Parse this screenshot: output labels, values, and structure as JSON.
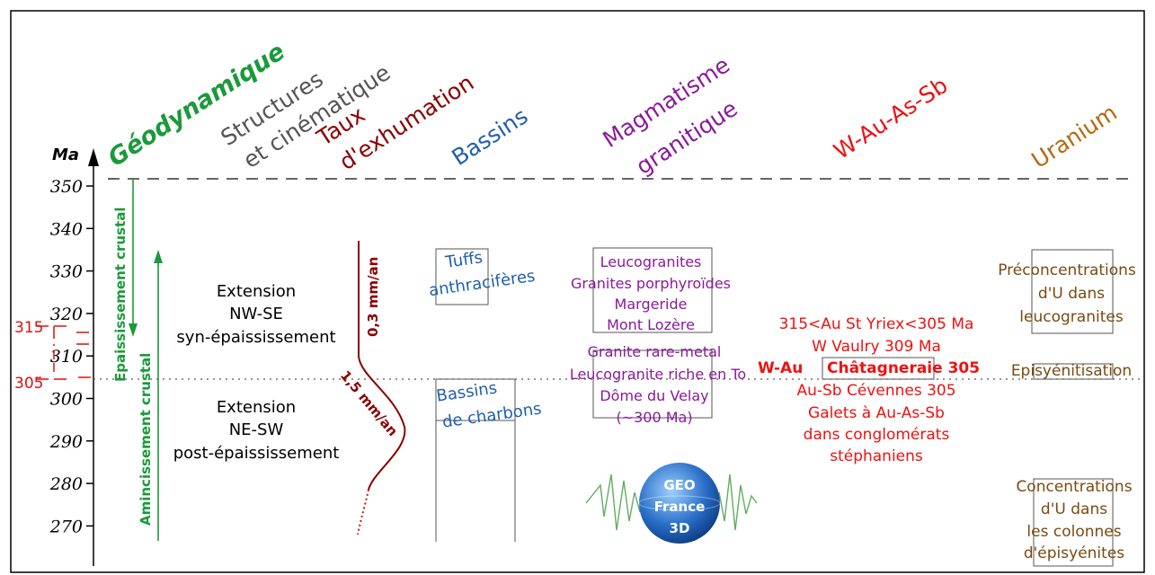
{
  "axis": {
    "unit": "Ma",
    "ticks": [
      350,
      340,
      330,
      320,
      310,
      300,
      290,
      280,
      270
    ],
    "markers": [
      "315",
      "305"
    ]
  },
  "headers": {
    "geodynamique": "Géodynamique",
    "structures_1": "Structures",
    "structures_2": "et cinématique",
    "taux_1": "Taux",
    "taux_2": "d'exhumation",
    "bassins": "Bassins",
    "magmatisme_1": "Magmatisme",
    "magmatisme_2": "granitique",
    "wauassb": "W-Au-As-Sb",
    "uranium": "Uranium"
  },
  "geodynamique": {
    "epaississement": "Epaississement crustal",
    "amincissement": "Amincissement crustal"
  },
  "structures": {
    "phase1": [
      "Extension",
      "NW-SE",
      "syn-épaississement"
    ],
    "phase2": [
      "Extension",
      "NE-SW",
      "post-épaississement"
    ]
  },
  "exhumation": {
    "rate1": "0,3 mm/an",
    "rate2": "1,5 mm/an"
  },
  "bassins": {
    "tuffs": [
      "Tuffs",
      "anthracifères"
    ],
    "charbons": [
      "Bassins",
      "de charbons"
    ]
  },
  "magmatisme": {
    "group1": [
      "Leucogranites",
      "Granites porphyroïdes",
      "Margeride",
      "Mont Lozère"
    ],
    "group2": [
      "Granite rare-metal",
      "Leucogranite riche en To",
      "Dôme du Velay",
      "(~300 Ma)"
    ]
  },
  "wauassb": {
    "lines": [
      "315<Au St Yriex<305 Ma",
      "W Vaulry 309 Ma"
    ],
    "bold_prefix": "W-Au",
    "bold_boxed": "Châtagneraie 305",
    "lines2": [
      "Au-Sb Cévennes 305",
      "Galets à Au-As-Sb",
      "dans conglomérats",
      "stéphaniens"
    ]
  },
  "uranium": {
    "preconc": [
      "Préconcentrations",
      "d'U dans",
      "leucogranites"
    ],
    "episyenitisation": "Episyénitisation",
    "conc": [
      "Concentrations",
      "d'U dans",
      "les colonnes",
      "d'épisyénites"
    ]
  },
  "logo": {
    "line1": "GEO",
    "line2": "France",
    "line3": "3D"
  },
  "colors": {
    "geodynamique": "#1a9a3a",
    "structures": "#555555",
    "taux": "#8b0000",
    "bassins": "#1f5fb0",
    "magmatisme": "#8a1a9a",
    "wauassb": "#ee1111",
    "uranium": "#b36a10",
    "uranium_text": "#7a4a10",
    "marker": "#dd1111"
  }
}
